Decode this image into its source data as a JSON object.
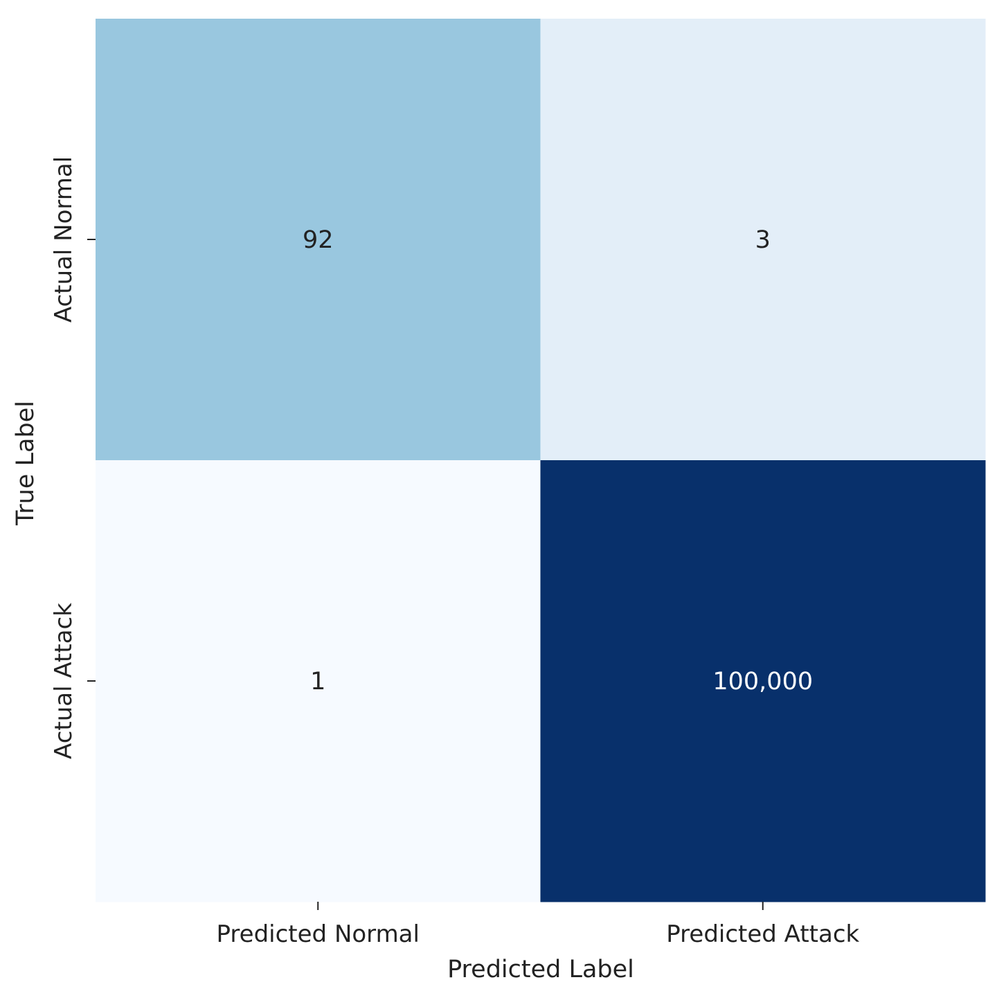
{
  "chart_data": {
    "type": "heatmap",
    "title": "",
    "xlabel": "Predicted Label",
    "ylabel": "True Label",
    "x_categories": [
      "Predicted Normal",
      "Predicted Attack"
    ],
    "y_categories": [
      "Actual Normal",
      "Actual Attack"
    ],
    "values": [
      [
        92,
        3
      ],
      [
        1,
        100000
      ]
    ],
    "cell_labels": [
      [
        "92",
        "3"
      ],
      [
        "1",
        "100,000"
      ]
    ],
    "colormap": "Blues",
    "colorbar": false,
    "grid": false,
    "colors": {
      "normal_predicted_normal": "#99c7df",
      "normal_predicted_attack": "#e3eef8",
      "attack_predicted_normal": "#f6faff",
      "attack_predicted_attack": "#08306b",
      "text_dark": "#222222",
      "text_light": "#ffffff"
    }
  }
}
